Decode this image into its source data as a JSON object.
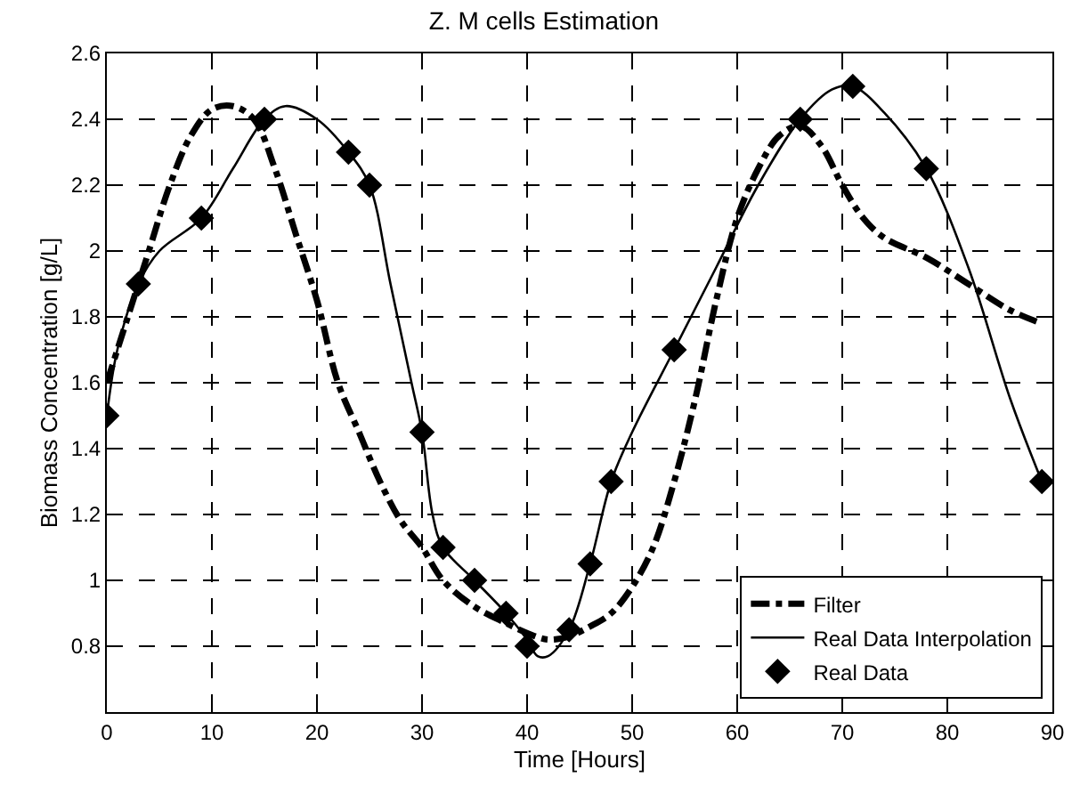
{
  "chart_data": {
    "type": "line",
    "title": "Z. M cells Estimation",
    "xlabel": "Time [Hours]",
    "ylabel": "Biomass Concentration [g/L]",
    "xlim": [
      0,
      90
    ],
    "xticks": [
      0,
      10,
      20,
      30,
      40,
      50,
      60,
      70,
      80,
      90
    ],
    "ylim": [
      0.6,
      2.6
    ],
    "yticks": [
      0.8,
      1,
      1.2,
      1.4,
      1.6,
      1.8,
      2,
      2.2,
      2.4,
      2.6
    ],
    "grid": true,
    "legend": "bottom right",
    "series": [
      {
        "name": "Filter",
        "color": "#000000",
        "line_style": "dashed",
        "marker": "none",
        "x": [
          0,
          2,
          4,
          6,
          8,
          10,
          12,
          14,
          16,
          18,
          20,
          22,
          24,
          26,
          28,
          30,
          32,
          35,
          38,
          40,
          42,
          44,
          46,
          48,
          50,
          52,
          54,
          56,
          58,
          60,
          62,
          64,
          66,
          68,
          70,
          72,
          74,
          78,
          82,
          86,
          89
        ],
        "values": [
          1.6,
          1.8,
          2.0,
          2.2,
          2.35,
          2.43,
          2.44,
          2.4,
          2.25,
          2.05,
          1.85,
          1.6,
          1.45,
          1.3,
          1.18,
          1.1,
          1.0,
          0.92,
          0.87,
          0.84,
          0.82,
          0.83,
          0.86,
          0.9,
          0.98,
          1.1,
          1.3,
          1.55,
          1.85,
          2.1,
          2.25,
          2.35,
          2.38,
          2.32,
          2.2,
          2.1,
          2.04,
          1.98,
          1.9,
          1.82,
          1.78
        ]
      },
      {
        "name": "Real Data Interpolation",
        "color": "#000000",
        "line_style": "solid",
        "marker": "none",
        "x": [
          0,
          1,
          3,
          5,
          9,
          12,
          15,
          17,
          20,
          23,
          25,
          27,
          29,
          30,
          31,
          32,
          35,
          38,
          40,
          41,
          42,
          44,
          46,
          48,
          50,
          54,
          58,
          62,
          66,
          69,
          71,
          74,
          78,
          82,
          86,
          89
        ],
        "values": [
          1.5,
          1.7,
          1.9,
          2.0,
          2.1,
          2.25,
          2.4,
          2.44,
          2.4,
          2.3,
          2.2,
          1.9,
          1.6,
          1.45,
          1.2,
          1.1,
          1.0,
          0.9,
          0.82,
          0.77,
          0.77,
          0.85,
          1.05,
          1.3,
          1.45,
          1.7,
          1.95,
          2.2,
          2.4,
          2.49,
          2.5,
          2.42,
          2.25,
          1.95,
          1.55,
          1.3
        ]
      },
      {
        "name": "Real Data",
        "type": "scatter",
        "color": "#000000",
        "marker": "diamond",
        "x": [
          0,
          3,
          9,
          15,
          23,
          25,
          30,
          32,
          35,
          38,
          40,
          44,
          46,
          48,
          54,
          66,
          71,
          78,
          89
        ],
        "values": [
          1.5,
          1.9,
          2.1,
          2.4,
          2.3,
          2.2,
          1.45,
          1.1,
          1.0,
          0.9,
          0.8,
          0.85,
          1.05,
          1.3,
          1.7,
          2.4,
          2.5,
          2.25,
          1.3
        ]
      }
    ]
  }
}
